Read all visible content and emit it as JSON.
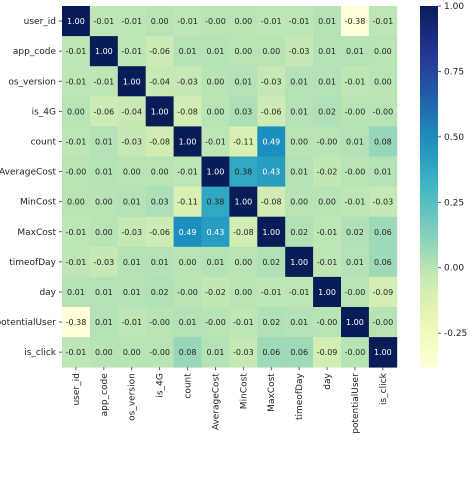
{
  "chart_data": {
    "type": "heatmap",
    "variables": [
      "user_id",
      "app_code",
      "os_version",
      "is_4G",
      "count",
      "AverageCost",
      "MinCost",
      "MaxCost",
      "timeofDay",
      "day",
      "potentialUser",
      "is_click"
    ],
    "cell_labels": [
      [
        "1.00",
        "-0.01",
        "-0.01",
        "0.00",
        "-0.01",
        "-0.00",
        "0.00",
        "-0.01",
        "-0.01",
        "0.01",
        "-0.38",
        "-0.01"
      ],
      [
        "-0.01",
        "1.00",
        "-0.01",
        "-0.06",
        "0.01",
        "0.01",
        "0.00",
        "0.00",
        "-0.03",
        "0.01",
        "0.01",
        "0.00"
      ],
      [
        "-0.01",
        "-0.01",
        "1.00",
        "-0.04",
        "-0.03",
        "0.00",
        "0.01",
        "-0.03",
        "0.01",
        "0.01",
        "-0.01",
        "0.00"
      ],
      [
        "0.00",
        "-0.06",
        "-0.04",
        "1.00",
        "-0.08",
        "0.00",
        "0.03",
        "-0.06",
        "0.01",
        "0.02",
        "-0.00",
        "-0.00"
      ],
      [
        "-0.01",
        "0.01",
        "-0.03",
        "-0.08",
        "1.00",
        "-0.01",
        "-0.11",
        "0.49",
        "0.00",
        "-0.00",
        "0.01",
        "0.08"
      ],
      [
        "-0.00",
        "0.01",
        "0.00",
        "0.00",
        "-0.01",
        "1.00",
        "0.38",
        "0.43",
        "0.01",
        "-0.02",
        "-0.00",
        "0.01"
      ],
      [
        "0.00",
        "0.00",
        "0.01",
        "0.03",
        "-0.11",
        "0.38",
        "1.00",
        "-0.08",
        "0.00",
        "0.00",
        "-0.01",
        "-0.03"
      ],
      [
        "-0.01",
        "0.00",
        "-0.03",
        "-0.06",
        "0.49",
        "0.43",
        "-0.08",
        "1.00",
        "0.02",
        "-0.01",
        "0.02",
        "0.06"
      ],
      [
        "-0.01",
        "-0.03",
        "0.01",
        "0.01",
        "0.00",
        "0.01",
        "0.00",
        "0.02",
        "1.00",
        "-0.01",
        "0.01",
        "0.06"
      ],
      [
        "0.01",
        "0.01",
        "0.01",
        "0.02",
        "-0.00",
        "-0.02",
        "0.00",
        "-0.01",
        "-0.01",
        "1.00",
        "-0.00",
        "-0.09"
      ],
      [
        "-0.38",
        "0.01",
        "-0.01",
        "-0.00",
        "0.01",
        "-0.00",
        "-0.01",
        "0.02",
        "0.01",
        "-0.00",
        "1.00",
        "-0.00"
      ],
      [
        "-0.01",
        "0.00",
        "0.00",
        "-0.00",
        "0.08",
        "0.01",
        "-0.03",
        "0.06",
        "0.06",
        "-0.09",
        "-0.00",
        "1.00"
      ]
    ],
    "colorbar": {
      "colormap": "YlGnBu",
      "range": [
        -0.38,
        1.0
      ],
      "ticks": [
        "1.00",
        "0.75",
        "0.50",
        "0.25",
        "0.00",
        "-0.25"
      ],
      "tick_values": [
        1.0,
        0.75,
        0.5,
        0.25,
        0.0,
        -0.25
      ]
    },
    "colors": {
      "low": "#ffffd9",
      "high": "#081d58",
      "text_on_light": "#262626",
      "text_on_dark": "#ffffff"
    }
  }
}
